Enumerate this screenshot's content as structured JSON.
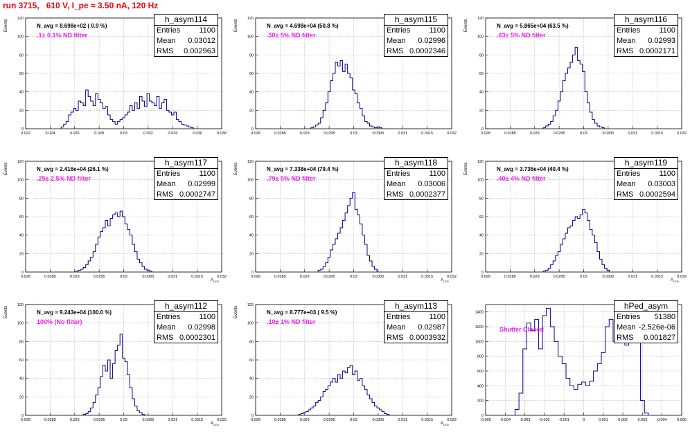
{
  "page": {
    "title": "run 3715,   610 V, I_pe ≈ 3.50 nA, 120 Hz"
  },
  "colors": {
    "title": "#e8000b",
    "hist": "#00008b",
    "annotation": "#e81ee8",
    "grid": "#b0b0b0"
  },
  "chart_data": [
    {
      "type": "bar",
      "name": "h_asym114",
      "title": "h_asym114",
      "stats": {
        "entries_label": "Entries",
        "entries": "1100",
        "mean_label": "Mean",
        "mean": "0.03012",
        "rms_label": "RMS",
        "rms": "0.002963"
      },
      "annotation": "N_avg = 8.698e+02 ( 0.9 %)",
      "filter": ".1± 0.1% ND filter",
      "xlabel": "",
      "ylabel": "Events",
      "xlim": [
        0.022,
        0.038
      ],
      "ylim": [
        0,
        120
      ],
      "xticks": [
        0.022,
        0.024,
        0.026,
        0.028,
        0.03,
        0.032,
        0.034,
        0.036,
        0.038
      ],
      "xtick_labels": [
        "0.022",
        "0.024",
        "0.026",
        "0.028",
        "0.03",
        "0.032",
        "0.034",
        "0.036",
        "0.038"
      ],
      "yticks": [
        0,
        20,
        40,
        60,
        80,
        100,
        120
      ],
      "bin_centers": [
        0.025,
        0.0252,
        0.0254,
        0.0256,
        0.0258,
        0.026,
        0.0262,
        0.0264,
        0.0266,
        0.0268,
        0.027,
        0.0272,
        0.0274,
        0.0276,
        0.0278,
        0.028,
        0.0282,
        0.0284,
        0.0286,
        0.0288,
        0.029,
        0.0292,
        0.0294,
        0.0296,
        0.0298,
        0.03,
        0.0302,
        0.0304,
        0.0306,
        0.0308,
        0.031,
        0.0312,
        0.0314,
        0.0316,
        0.0318,
        0.032,
        0.0322,
        0.0324,
        0.0326,
        0.0328,
        0.033,
        0.0332,
        0.0334,
        0.0336,
        0.0338,
        0.034,
        0.0342,
        0.0344,
        0.0346,
        0.0348,
        0.035,
        0.0352,
        0.0354,
        0.0356
      ],
      "values": [
        2,
        5,
        8,
        15,
        18,
        22,
        20,
        30,
        28,
        25,
        42,
        35,
        30,
        25,
        38,
        32,
        28,
        22,
        24,
        15,
        10,
        8,
        5,
        8,
        10,
        12,
        15,
        18,
        25,
        20,
        28,
        22,
        35,
        30,
        24,
        38,
        30,
        28,
        25,
        35,
        22,
        28,
        32,
        20,
        18,
        15,
        18,
        10,
        8,
        5,
        4,
        3,
        2,
        1
      ]
    },
    {
      "type": "bar",
      "name": "h_asym115",
      "title": "h_asym115",
      "stats": {
        "entries_label": "Entries",
        "entries": "1100",
        "mean_label": "Mean",
        "mean": "0.02996",
        "rms_label": "RMS",
        "rms": "0.0002346"
      },
      "annotation": "N_avg = 4.698e+04 (50.8 %)",
      "filter": ".50± 5% ND filter",
      "xlabel": "",
      "ylabel": "Events",
      "xlim": [
        0.028,
        0.032
      ],
      "ylim": [
        0,
        120
      ],
      "xticks": [
        0.028,
        0.0285,
        0.029,
        0.0295,
        0.03,
        0.0305,
        0.031,
        0.0315,
        0.032
      ],
      "xtick_labels": [
        "0.028",
        "0.0285",
        "0.029",
        "0.0295",
        "0.03",
        "0.0305",
        "0.031",
        "0.0315",
        "0.032"
      ],
      "yticks": [
        0,
        20,
        40,
        60,
        80,
        100,
        120
      ],
      "bin_centers": [
        0.02915,
        0.0292,
        0.02925,
        0.0293,
        0.02935,
        0.0294,
        0.02945,
        0.0295,
        0.02955,
        0.0296,
        0.02965,
        0.0297,
        0.02975,
        0.0298,
        0.02985,
        0.0299,
        0.02995,
        0.03,
        0.03005,
        0.0301,
        0.03015,
        0.0302,
        0.03025,
        0.0303,
        0.03035,
        0.0304,
        0.03045,
        0.0305,
        0.03055
      ],
      "values": [
        1,
        2,
        4,
        6,
        12,
        20,
        28,
        40,
        52,
        60,
        72,
        68,
        74,
        62,
        70,
        60,
        55,
        42,
        38,
        28,
        22,
        14,
        8,
        6,
        3,
        2,
        1,
        2,
        1
      ]
    },
    {
      "type": "bar",
      "name": "h_asym116",
      "title": "h_asym116",
      "stats": {
        "entries_label": "Entries",
        "entries": "1100",
        "mean_label": "Mean",
        "mean": "0.02993",
        "rms_label": "RMS",
        "rms": "0.0002171"
      },
      "annotation": "N_avg = 5.865e+04 (63.5 %)",
      "filter": ".63± 5% ND filter",
      "xlabel": "",
      "ylabel": "Events",
      "xlim": [
        0.028,
        0.032
      ],
      "ylim": [
        0,
        120
      ],
      "xticks": [
        0.028,
        0.0285,
        0.029,
        0.0295,
        0.03,
        0.0305,
        0.031,
        0.0315,
        0.032
      ],
      "xtick_labels": [
        "0.028",
        "0.0285",
        "0.029",
        "0.0295",
        "0.03",
        "0.0305",
        "0.031",
        "0.0315",
        "0.032"
      ],
      "yticks": [
        0,
        20,
        40,
        60,
        80,
        100,
        120
      ],
      "bin_centers": [
        0.0292,
        0.02925,
        0.0293,
        0.02935,
        0.0294,
        0.02945,
        0.0295,
        0.02955,
        0.0296,
        0.02965,
        0.0297,
        0.02975,
        0.0298,
        0.02985,
        0.0299,
        0.02995,
        0.03,
        0.03005,
        0.0301,
        0.03015,
        0.0302,
        0.03025,
        0.0303,
        0.03035,
        0.0304
      ],
      "values": [
        1,
        3,
        5,
        8,
        14,
        20,
        30,
        40,
        52,
        60,
        66,
        72,
        80,
        88,
        74,
        70,
        62,
        40,
        28,
        18,
        10,
        6,
        3,
        2,
        1
      ]
    },
    {
      "type": "bar",
      "name": "h_asym117",
      "title": "h_asym117",
      "stats": {
        "entries_label": "Entries",
        "entries": "1100",
        "mean_label": "Mean",
        "mean": "0.02999",
        "rms_label": "RMS",
        "rms": "0.0002747"
      },
      "annotation": "N_avg = 2.416e+04 (26.1 %)",
      "filter": ".25± 2.5% ND filter",
      "xlabel": "A",
      "xlabel_sub": "LED",
      "ylabel": "Events",
      "xlim": [
        0.028,
        0.032
      ],
      "ylim": [
        0,
        120
      ],
      "xticks": [
        0.028,
        0.0285,
        0.029,
        0.0295,
        0.03,
        0.0305,
        0.031,
        0.0315,
        0.032
      ],
      "xtick_labels": [
        "0.028",
        "0.0285",
        "0.029",
        "0.0295",
        "0.03",
        "0.0305",
        "0.031",
        "0.0315",
        "0.032"
      ],
      "yticks": [
        0,
        20,
        40,
        60,
        80,
        100,
        120
      ],
      "bin_centers": [
        0.02905,
        0.0291,
        0.02915,
        0.0292,
        0.02925,
        0.0293,
        0.02935,
        0.0294,
        0.02945,
        0.0295,
        0.02955,
        0.0296,
        0.02965,
        0.0297,
        0.02975,
        0.0298,
        0.02985,
        0.0299,
        0.02995,
        0.03,
        0.03005,
        0.0301,
        0.03015,
        0.0302,
        0.03025,
        0.0303,
        0.03035,
        0.0304,
        0.03045,
        0.0305,
        0.03055
      ],
      "values": [
        1,
        2,
        3,
        5,
        8,
        12,
        16,
        22,
        30,
        38,
        44,
        48,
        56,
        50,
        58,
        62,
        64,
        60,
        66,
        60,
        52,
        46,
        40,
        30,
        22,
        14,
        10,
        6,
        3,
        2,
        1
      ]
    },
    {
      "type": "bar",
      "name": "h_asym118",
      "title": "h_asym118",
      "stats": {
        "entries_label": "Entries",
        "entries": "1100",
        "mean_label": "Mean",
        "mean": "0.03006",
        "rms_label": "RMS",
        "rms": "0.0002377"
      },
      "annotation": "N_avg = 7.338e+04 (79.4 %)",
      "filter": ".79± 5% ND filter",
      "xlabel": "A",
      "xlabel_sub": "LED",
      "ylabel": "Events",
      "xlim": [
        0.028,
        0.032
      ],
      "ylim": [
        0,
        120
      ],
      "xticks": [
        0.028,
        0.0285,
        0.029,
        0.0295,
        0.03,
        0.0305,
        0.031,
        0.0315,
        0.032
      ],
      "xtick_labels": [
        "0.028",
        "0.0285",
        "0.029",
        "0.0295",
        "0.03",
        "0.0305",
        "0.031",
        "0.0315",
        "0.032"
      ],
      "yticks": [
        0,
        20,
        40,
        60,
        80,
        100,
        120
      ],
      "bin_centers": [
        0.0293,
        0.02935,
        0.0294,
        0.02945,
        0.0295,
        0.02955,
        0.0296,
        0.02965,
        0.0297,
        0.02975,
        0.0298,
        0.02985,
        0.0299,
        0.02995,
        0.03,
        0.03005,
        0.0301,
        0.03015,
        0.0302,
        0.03025,
        0.0303,
        0.03035,
        0.0304,
        0.03045
      ],
      "values": [
        2,
        3,
        6,
        10,
        16,
        24,
        30,
        36,
        42,
        48,
        56,
        64,
        72,
        80,
        86,
        68,
        62,
        52,
        40,
        30,
        18,
        12,
        6,
        3
      ]
    },
    {
      "type": "bar",
      "name": "h_asym119",
      "title": "h_asym119",
      "stats": {
        "entries_label": "Entries",
        "entries": "1100",
        "mean_label": "Mean",
        "mean": "0.03003",
        "rms_label": "RMS",
        "rms": "0.0002594"
      },
      "annotation": "N_avg = 3.736e+04 (40.4 %)",
      "filter": ".40± 4% ND filter",
      "xlabel": "A",
      "xlabel_sub": "LED",
      "ylabel": "Events",
      "xlim": [
        0.028,
        0.032
      ],
      "ylim": [
        0,
        120
      ],
      "xticks": [
        0.028,
        0.0285,
        0.029,
        0.0295,
        0.03,
        0.0305,
        0.031,
        0.0315,
        0.032
      ],
      "xtick_labels": [
        "0.028",
        "0.0285",
        "0.029",
        "0.0295",
        "0.03",
        "0.0305",
        "0.031",
        "0.0315",
        "0.032"
      ],
      "yticks": [
        0,
        20,
        40,
        60,
        80,
        100,
        120
      ],
      "bin_centers": [
        0.0292,
        0.02925,
        0.0293,
        0.02935,
        0.0294,
        0.02945,
        0.0295,
        0.02955,
        0.0296,
        0.02965,
        0.0297,
        0.02975,
        0.0298,
        0.02985,
        0.0299,
        0.02995,
        0.03,
        0.03005,
        0.0301,
        0.03015,
        0.0302,
        0.03025,
        0.0303,
        0.03035,
        0.0304,
        0.03045,
        0.0305
      ],
      "values": [
        1,
        2,
        4,
        8,
        12,
        18,
        22,
        30,
        36,
        42,
        48,
        50,
        56,
        60,
        58,
        62,
        68,
        64,
        56,
        46,
        40,
        32,
        22,
        14,
        8,
        4,
        2
      ]
    },
    {
      "type": "bar",
      "name": "h_asym112",
      "title": "h_asym112",
      "stats": {
        "entries_label": "Entries",
        "entries": "1100",
        "mean_label": "Mean",
        "mean": "0.02998",
        "rms_label": "RMS",
        "rms": "0.0002301"
      },
      "annotation": "N_avg = 9.243e+04 (100.0 %)",
      "filter": "100% (No filter)",
      "xlabel": "A",
      "xlabel_sub": "LED",
      "ylabel": "Events",
      "xlim": [
        0.028,
        0.032
      ],
      "ylim": [
        0,
        120
      ],
      "xticks": [
        0.028,
        0.0285,
        0.029,
        0.0295,
        0.03,
        0.0305,
        0.031,
        0.0315,
        0.032
      ],
      "xtick_labels": [
        "0.028",
        "0.0285",
        "0.029",
        "0.0295",
        "0.03",
        "0.0305",
        "0.031",
        "0.0315",
        "0.032"
      ],
      "yticks": [
        0,
        20,
        40,
        60,
        80,
        100,
        120
      ],
      "bin_centers": [
        0.0292,
        0.02925,
        0.0293,
        0.02935,
        0.0294,
        0.02945,
        0.0295,
        0.02955,
        0.0296,
        0.02965,
        0.0297,
        0.02975,
        0.0298,
        0.02985,
        0.0299,
        0.02995,
        0.03,
        0.03005,
        0.0301,
        0.03015,
        0.0302,
        0.03025,
        0.0303,
        0.03035,
        0.0304
      ],
      "values": [
        1,
        2,
        4,
        8,
        14,
        22,
        30,
        42,
        54,
        48,
        60,
        40,
        56,
        70,
        76,
        88,
        62,
        58,
        44,
        30,
        18,
        10,
        5,
        3,
        1
      ]
    },
    {
      "type": "bar",
      "name": "h_asym113",
      "title": "h_asym113",
      "stats": {
        "entries_label": "Entries",
        "entries": "1100",
        "mean_label": "Mean",
        "mean": "0.02987",
        "rms_label": "RMS",
        "rms": "0.0003932"
      },
      "annotation": "N_avg = 8.777e+03 ( 9.5 %)",
      "filter": ".10± 1% ND filter",
      "xlabel": "A",
      "xlabel_sub": "LED",
      "ylabel": "Events",
      "xlim": [
        0.028,
        0.032
      ],
      "ylim": [
        0,
        120
      ],
      "xticks": [
        0.028,
        0.0285,
        0.029,
        0.0295,
        0.03,
        0.0305,
        0.031,
        0.0315,
        0.032
      ],
      "xtick_labels": [
        "0.028",
        "0.0285",
        "0.029",
        "0.0295",
        "0.03",
        "0.0305",
        "0.031",
        "0.0315",
        "0.032"
      ],
      "yticks": [
        0,
        20,
        40,
        60,
        80,
        100,
        120
      ],
      "bin_centers": [
        0.0289,
        0.02895,
        0.029,
        0.02905,
        0.0291,
        0.02915,
        0.0292,
        0.02925,
        0.0293,
        0.02935,
        0.0294,
        0.02945,
        0.0295,
        0.02955,
        0.0296,
        0.02965,
        0.0297,
        0.02975,
        0.0298,
        0.02985,
        0.0299,
        0.02995,
        0.03,
        0.03005,
        0.0301,
        0.03015,
        0.0302,
        0.03025,
        0.0303,
        0.03035,
        0.0304,
        0.03045,
        0.0305,
        0.03055,
        0.0306,
        0.03065,
        0.0307
      ],
      "values": [
        1,
        2,
        3,
        4,
        6,
        8,
        10,
        14,
        16,
        20,
        26,
        28,
        32,
        36,
        40,
        36,
        44,
        40,
        48,
        46,
        52,
        54,
        44,
        48,
        38,
        40,
        32,
        28,
        22,
        18,
        14,
        10,
        8,
        6,
        4,
        2,
        1
      ]
    },
    {
      "type": "bar",
      "name": "hPed_asym",
      "title": "hPed_asym",
      "stats": {
        "entries_label": "Entries",
        "entries": "51380",
        "mean_label": "Mean",
        "mean": "-2.526e-06",
        "rms_label": "RMS",
        "rms": "0.001827"
      },
      "annotation": "",
      "filter": "Shutter Closed",
      "xlabel": "",
      "ylabel": "",
      "xlim": [
        -0.005,
        0.005
      ],
      "ylim": [
        0,
        1500
      ],
      "xticks": [
        -0.005,
        -0.004,
        -0.003,
        -0.002,
        -0.001,
        0,
        0.001,
        0.002,
        0.003,
        0.004,
        0.005
      ],
      "xtick_labels": [
        "-0.005",
        "-0.004",
        "-0.003",
        "-0.002",
        "-0.001",
        "0",
        "0.001",
        "0.002",
        "0.003",
        "0.004",
        "0.005"
      ],
      "yticks": [
        0,
        200,
        400,
        600,
        800,
        1000,
        1200,
        1400
      ],
      "bin_centers": [
        -0.0034,
        -0.0032,
        -0.003,
        -0.0028,
        -0.0026,
        -0.0024,
        -0.0022,
        -0.002,
        -0.0018,
        -0.0016,
        -0.0014,
        -0.0012,
        -0.001,
        -0.0008,
        -0.0006,
        -0.0004,
        -0.0002,
        0.0,
        0.0002,
        0.0004,
        0.0006,
        0.0008,
        0.001,
        0.0012,
        0.0014,
        0.0016,
        0.0018,
        0.002,
        0.0022,
        0.0024,
        0.0026,
        0.0028,
        0.003,
        0.0032
      ],
      "values": [
        80,
        300,
        900,
        1250,
        1150,
        1300,
        900,
        1350,
        1450,
        1200,
        1000,
        800,
        700,
        500,
        400,
        350,
        420,
        450,
        400,
        460,
        600,
        700,
        850,
        1200,
        1300,
        1000,
        1100,
        1200,
        950,
        1350,
        1200,
        1100,
        200,
        30
      ]
    }
  ]
}
